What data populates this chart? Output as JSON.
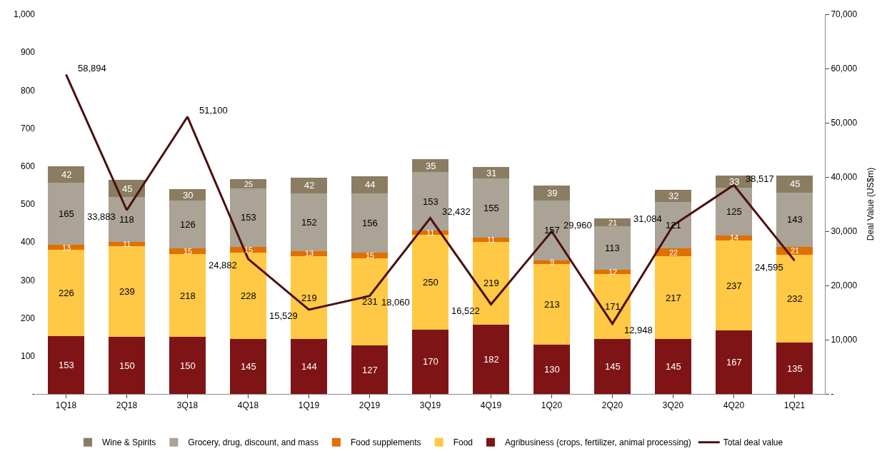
{
  "chart_data": {
    "type": "bar",
    "stacked": true,
    "data_labels": true,
    "legend": "bottom",
    "categories": [
      "1Q18",
      "2Q18",
      "3Q18",
      "4Q18",
      "1Q19",
      "2Q19",
      "3Q19",
      "4Q19",
      "1Q20",
      "2Q20",
      "3Q20",
      "4Q20",
      "1Q21"
    ],
    "ylim": [
      0,
      1000
    ],
    "yticks": [
      {
        "value": 0,
        "label": "-"
      },
      100,
      200,
      300,
      400,
      500,
      600,
      700,
      800,
      900,
      {
        "value": 1000,
        "label": "1,000"
      }
    ],
    "y2label": "Deal Value (US$m)",
    "y2lim": [
      0,
      70000
    ],
    "y2ticks": [
      {
        "value": 0,
        "label": "-"
      },
      {
        "value": 10000,
        "label": "10,000"
      },
      {
        "value": 20000,
        "label": "20,000"
      },
      {
        "value": 30000,
        "label": "30,000"
      },
      {
        "value": 40000,
        "label": "40,000"
      },
      {
        "value": 50000,
        "label": "50,000"
      },
      {
        "value": 60000,
        "label": "60,000"
      },
      {
        "value": 70000,
        "label": "70,000"
      }
    ],
    "series": [
      {
        "name": "Agribusiness (crops, fertilizer, animal processing)",
        "color": "#7f1416",
        "values": [
          153,
          150,
          150,
          145,
          144,
          127,
          170,
          182,
          130,
          145,
          145,
          167,
          135
        ]
      },
      {
        "name": "Food",
        "color": "#ffc845",
        "values": [
          226,
          239,
          218,
          228,
          219,
          231,
          250,
          219,
          213,
          171,
          217,
          237,
          232
        ]
      },
      {
        "name": "Food supplements",
        "color": "#e07000",
        "values": [
          13,
          11,
          15,
          15,
          13,
          15,
          11,
          11,
          9,
          12,
          22,
          14,
          21
        ]
      },
      {
        "name": "Grocery, drug, discount, and mass",
        "color": "#aaa396",
        "values": [
          165,
          118,
          126,
          153,
          152,
          156,
          153,
          155,
          157,
          113,
          121,
          125,
          143
        ]
      },
      {
        "name": "Wine & Spirits",
        "color": "#8b7d62",
        "values": [
          42,
          45,
          30,
          25,
          42,
          44,
          35,
          31,
          39,
          21,
          32,
          33,
          45
        ]
      },
      {
        "name": "Total deal value",
        "type": "line",
        "axis": "y2",
        "color": "#4b1010",
        "marker": "none",
        "line_style": "solid",
        "values": [
          58894,
          33883,
          51100,
          24882,
          15529,
          18060,
          32432,
          16522,
          29960,
          12948,
          31084,
          38517,
          24595
        ],
        "value_labels": [
          "58,894",
          "33,883",
          "51,100",
          "24,882",
          "15,529",
          "18,060",
          "32,432",
          "16,522",
          "29,960",
          "12,948",
          "31,084",
          "38,517",
          "24,595"
        ]
      }
    ]
  }
}
